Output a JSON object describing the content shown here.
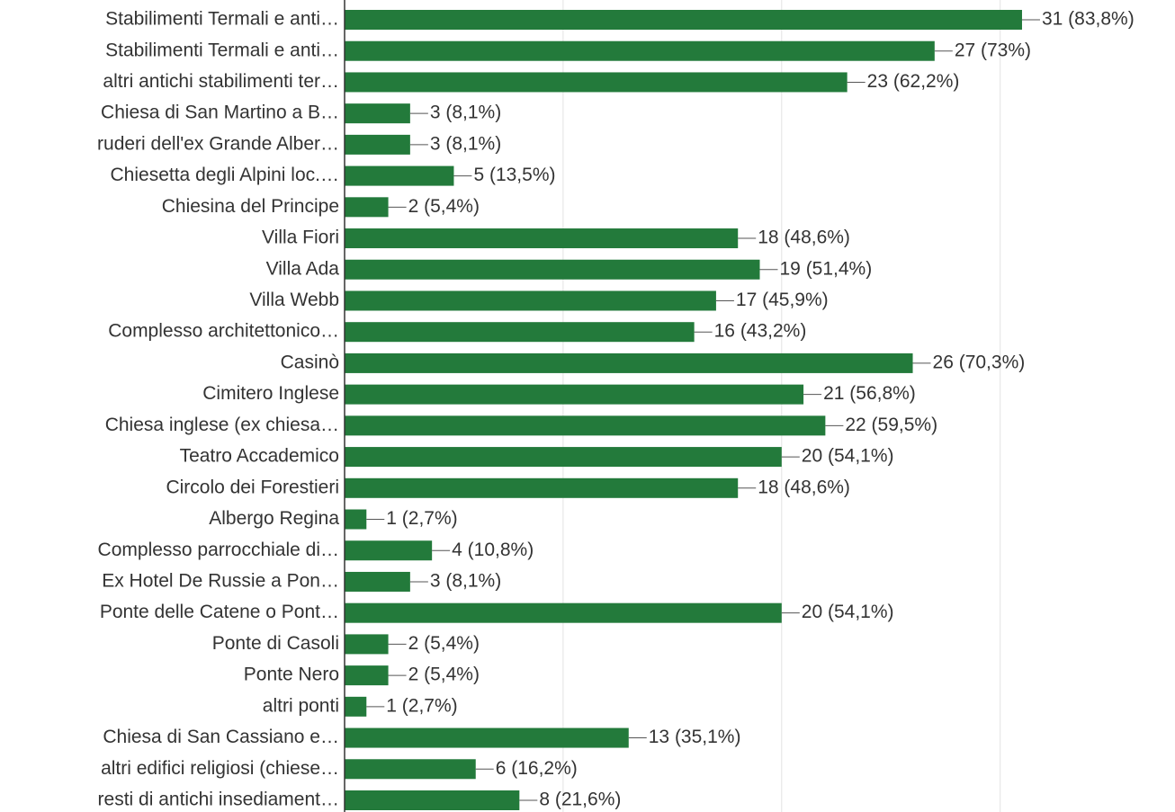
{
  "chart_data": {
    "type": "hbar",
    "categories": [
      "Stabilimenti Termali e anti…",
      "Stabilimenti Termali e anti…",
      "altri antichi stabilimenti ter…",
      "Chiesa di San Martino a B…",
      "ruderi dell'ex Grande Alber…",
      "Chiesetta degli Alpini loc.…",
      "Chiesina del Principe",
      "Villa Fiori",
      "Villa Ada",
      "Villa Webb",
      "Complesso architettonico…",
      "Casinò",
      "Cimitero Inglese",
      "Chiesa inglese (ex chiesa…",
      "Teatro Accademico",
      "Circolo dei Forestieri",
      "Albergo Regina",
      "Complesso parrocchiale di…",
      "Ex Hotel De Russie a Pon…",
      "Ponte delle Catene o Pont…",
      "Ponte di Casoli",
      "Ponte Nero",
      "altri ponti",
      "Chiesa di San Cassiano e…",
      "altri edifici religiosi (chiese…",
      "resti di antichi insediament…"
    ],
    "values": [
      31,
      27,
      23,
      3,
      3,
      5,
      2,
      18,
      19,
      17,
      16,
      26,
      21,
      22,
      20,
      18,
      1,
      4,
      3,
      20,
      2,
      2,
      1,
      13,
      6,
      8
    ],
    "value_labels": [
      "31 (83,8%)",
      "27 (73%)",
      "23 (62,2%)",
      "3 (8,1%)",
      "3 (8,1%)",
      "5 (13,5%)",
      "2 (5,4%)",
      "18 (48,6%)",
      "19 (51,4%)",
      "17 (45,9%)",
      "16 (43,2%)",
      "26 (70,3%)",
      "21 (56,8%)",
      "22 (59,5%)",
      "20 (54,1%)",
      "18 (48,6%)",
      "1 (2,7%)",
      "4 (10,8%)",
      "3 (8,1%)",
      "20 (54,1%)",
      "2 (5,4%)",
      "2 (5,4%)",
      "1 (2,7%)",
      "13 (35,1%)",
      "6 (16,2%)",
      "8 (21,6%)"
    ],
    "color": "#237a3b",
    "xlim": [
      0,
      38
    ],
    "xticks": [
      0,
      10,
      20,
      30
    ],
    "grid": true
  }
}
